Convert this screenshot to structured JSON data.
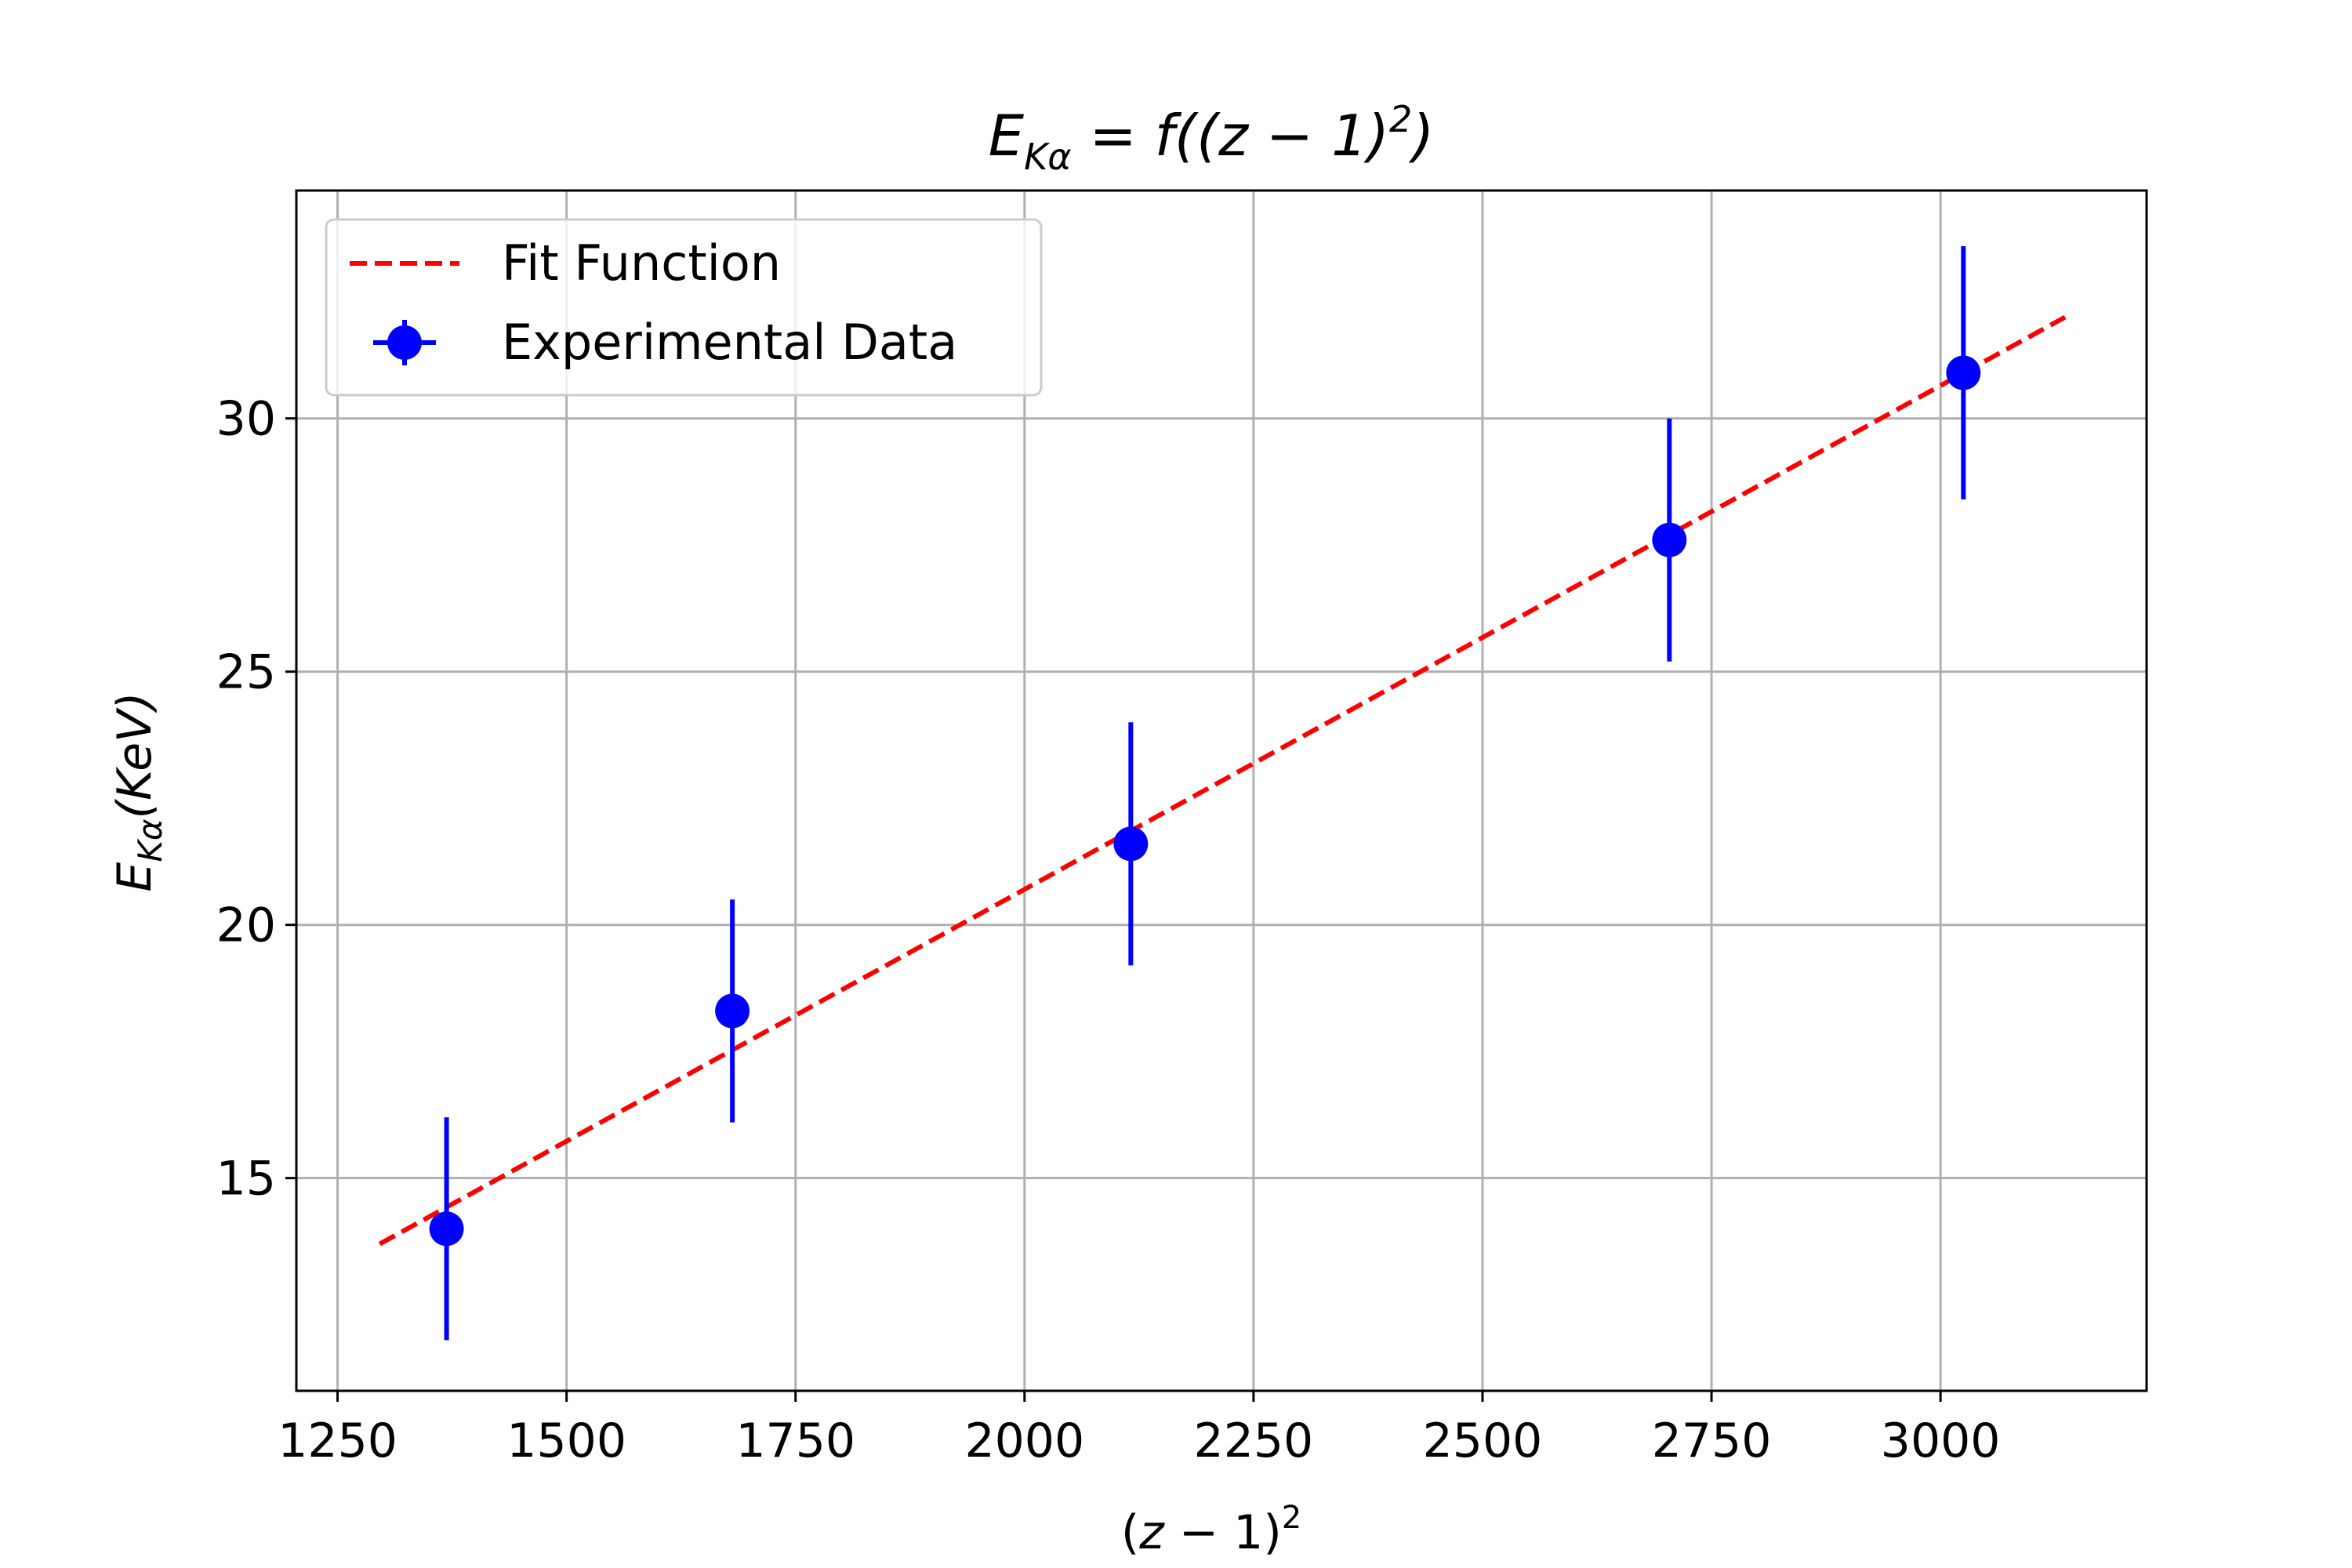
{
  "chart_data": {
    "type": "scatter",
    "title": "E_Kα = f((z − 1)²)",
    "xlabel": "(z − 1)²",
    "ylabel": "E_Kα(KeV)",
    "xlim": [
      1205,
      3225
    ],
    "ylim": [
      10.8,
      34.5
    ],
    "xticks": [
      1250,
      1500,
      1750,
      2000,
      2250,
      2500,
      2750,
      3000
    ],
    "yticks": [
      15,
      20,
      25,
      30
    ],
    "grid": true,
    "legend_position": "upper-left",
    "series": [
      {
        "name": "Fit Function",
        "kind": "line",
        "style": "dashed",
        "color": "#ff0000",
        "x": [
          1296,
          3136
        ],
        "y": [
          13.7,
          32.0
        ]
      },
      {
        "name": "Experimental Data",
        "kind": "errorbar",
        "color": "#0000ff",
        "x": [
          1369,
          1681,
          2116,
          2704,
          3025
        ],
        "y": [
          14.0,
          18.3,
          21.6,
          27.6,
          30.9
        ],
        "yerr": [
          2.2,
          2.2,
          2.4,
          2.4,
          2.5
        ]
      }
    ]
  }
}
